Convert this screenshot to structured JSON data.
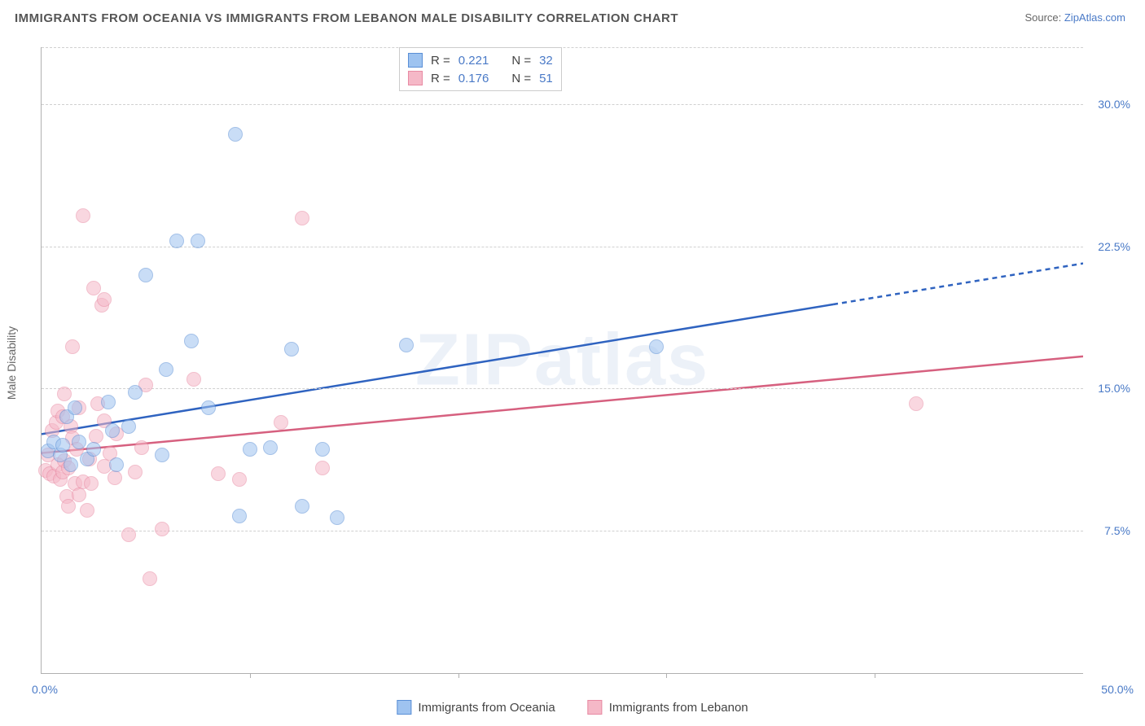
{
  "title": "IMMIGRANTS FROM OCEANIA VS IMMIGRANTS FROM LEBANON MALE DISABILITY CORRELATION CHART",
  "source_prefix": "Source: ",
  "source_link": "ZipAtlas.com",
  "ylabel": "Male Disability",
  "watermark": "ZIPatlas",
  "chart": {
    "type": "scatter",
    "xlim": [
      0,
      50
    ],
    "ylim": [
      0,
      33
    ],
    "xtick_step": 10,
    "yticks": [
      7.5,
      15.0,
      22.5,
      30.0
    ],
    "ytick_labels": [
      "7.5%",
      "15.0%",
      "22.5%",
      "30.0%"
    ],
    "xlim_labels": [
      "0.0%",
      "50.0%"
    ],
    "background_color": "#ffffff",
    "grid_color": "#d0d0d0",
    "axis_color": "#b0b0b0",
    "marker_radius": 9,
    "marker_opacity": 0.55,
    "marker_stroke_opacity": 0.9
  },
  "series": {
    "oceania": {
      "label": "Immigrants from Oceania",
      "fill_color": "#9ec3f0",
      "stroke_color": "#5a8fd6",
      "line_color": "#2f63c0",
      "r_value": "0.221",
      "n_value": "32",
      "regression": {
        "x1": 0,
        "y1": 12.6,
        "x2": 50,
        "y2": 21.6,
        "dash_from_x": 38
      },
      "points": [
        [
          0.3,
          11.7
        ],
        [
          0.6,
          12.2
        ],
        [
          0.9,
          11.5
        ],
        [
          1.0,
          12.0
        ],
        [
          1.2,
          13.5
        ],
        [
          1.4,
          11.0
        ],
        [
          1.6,
          14.0
        ],
        [
          1.8,
          12.2
        ],
        [
          2.2,
          11.3
        ],
        [
          2.5,
          11.8
        ],
        [
          3.2,
          14.3
        ],
        [
          3.4,
          12.8
        ],
        [
          3.6,
          11.0
        ],
        [
          4.2,
          13.0
        ],
        [
          4.5,
          14.8
        ],
        [
          5.0,
          21.0
        ],
        [
          5.8,
          11.5
        ],
        [
          6.0,
          16.0
        ],
        [
          6.5,
          22.8
        ],
        [
          7.2,
          17.5
        ],
        [
          7.5,
          22.8
        ],
        [
          8.0,
          14.0
        ],
        [
          9.3,
          28.4
        ],
        [
          9.5,
          8.3
        ],
        [
          10.0,
          11.8
        ],
        [
          11.0,
          11.9
        ],
        [
          12.0,
          17.1
        ],
        [
          12.5,
          8.8
        ],
        [
          13.5,
          11.8
        ],
        [
          14.2,
          8.2
        ],
        [
          17.5,
          17.3
        ],
        [
          29.5,
          17.2
        ]
      ]
    },
    "lebanon": {
      "label": "Immigrants from Lebanon",
      "fill_color": "#f5b8c7",
      "stroke_color": "#e88aa3",
      "line_color": "#d6607f",
      "r_value": "0.176",
      "n_value": "51",
      "regression": {
        "x1": 0,
        "y1": 11.6,
        "x2": 50,
        "y2": 16.7,
        "dash_from_x": 50
      },
      "points": [
        [
          0.2,
          10.7
        ],
        [
          0.3,
          11.5
        ],
        [
          0.4,
          10.5
        ],
        [
          0.5,
          12.8
        ],
        [
          0.6,
          10.4
        ],
        [
          0.7,
          13.2
        ],
        [
          0.8,
          11.0
        ],
        [
          0.8,
          13.8
        ],
        [
          0.9,
          10.2
        ],
        [
          1.0,
          10.6
        ],
        [
          1.0,
          13.5
        ],
        [
          1.1,
          11.2
        ],
        [
          1.1,
          14.7
        ],
        [
          1.2,
          9.3
        ],
        [
          1.3,
          8.8
        ],
        [
          1.3,
          10.8
        ],
        [
          1.4,
          13.0
        ],
        [
          1.5,
          12.4
        ],
        [
          1.5,
          17.2
        ],
        [
          1.6,
          10.0
        ],
        [
          1.7,
          11.8
        ],
        [
          1.8,
          9.4
        ],
        [
          1.8,
          14.0
        ],
        [
          2.0,
          10.1
        ],
        [
          2.0,
          24.1
        ],
        [
          2.2,
          8.6
        ],
        [
          2.3,
          11.3
        ],
        [
          2.4,
          10.0
        ],
        [
          2.5,
          20.3
        ],
        [
          2.6,
          12.5
        ],
        [
          2.7,
          14.2
        ],
        [
          2.9,
          19.4
        ],
        [
          3.0,
          10.9
        ],
        [
          3.0,
          13.3
        ],
        [
          3.0,
          19.7
        ],
        [
          3.3,
          11.6
        ],
        [
          3.5,
          10.3
        ],
        [
          3.6,
          12.6
        ],
        [
          4.2,
          7.3
        ],
        [
          4.5,
          10.6
        ],
        [
          4.8,
          11.9
        ],
        [
          5.0,
          15.2
        ],
        [
          5.2,
          5.0
        ],
        [
          5.8,
          7.6
        ],
        [
          7.3,
          15.5
        ],
        [
          8.5,
          10.5
        ],
        [
          9.5,
          10.2
        ],
        [
          11.5,
          13.2
        ],
        [
          12.5,
          24.0
        ],
        [
          13.5,
          10.8
        ],
        [
          42.0,
          14.2
        ]
      ]
    }
  },
  "legend_top": {
    "r_label": "R =",
    "n_label": "N ="
  }
}
